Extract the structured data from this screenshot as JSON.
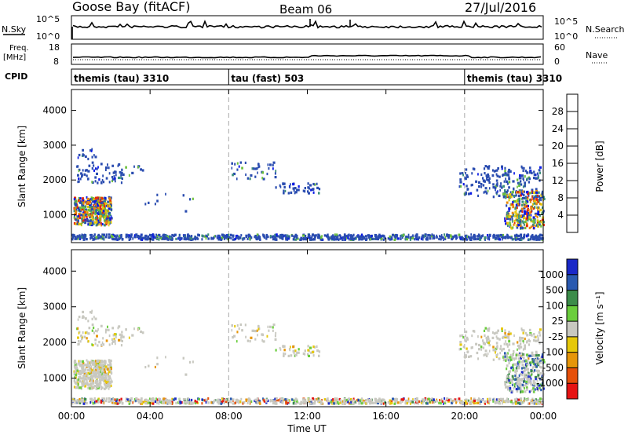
{
  "header": {
    "radar": "Goose Bay (fitACF)",
    "beam": "Beam 06",
    "date": "27/Jul/2016"
  },
  "params": {
    "nsky_label": "N.Sky",
    "nsearch_label": "N.Search",
    "freq_label_line1": "Freq.",
    "freq_label_line2": "[MHz]",
    "nave_label": "Nave",
    "cpid_label": "CPID",
    "noise_ticks": [
      "10^5",
      "10^0"
    ],
    "freq_ticks": [
      "18",
      "8"
    ],
    "nave_ticks": [
      "60",
      "0"
    ]
  },
  "cpid_segments": [
    {
      "label": "themis (tau) 3310",
      "start_hour": 0
    },
    {
      "label": "tau (fast) 503",
      "start_hour": 8
    },
    {
      "label": "themis (tau) 3310",
      "start_hour": 20
    }
  ],
  "chart_data": [
    {
      "type": "heatmap",
      "name": "power",
      "ylabel": "Slant Range [km]",
      "xlabel": "",
      "xlim": [
        0,
        24
      ],
      "ylim": [
        200,
        4600
      ],
      "yticks": [
        1000,
        2000,
        3000,
        4000
      ],
      "colorbar": {
        "label": "Power [dB]",
        "ticks": [
          4,
          8,
          12,
          16,
          20,
          24,
          28
        ],
        "range": [
          0,
          32
        ],
        "colors": [
          "#0a1ae6",
          "#2a4cb0",
          "#3c8f7a",
          "#6abf3a",
          "#e6c80a",
          "#e68a0a",
          "#e6280a"
        ]
      }
    },
    {
      "type": "heatmap",
      "name": "velocity",
      "ylabel": "Slant Range [km]",
      "xlabel": "Time UT",
      "xlim": [
        0,
        24
      ],
      "ylim": [
        200,
        4600
      ],
      "yticks": [
        1000,
        2000,
        3000,
        4000
      ],
      "xticks": [
        "00:00",
        "04:00",
        "08:00",
        "12:00",
        "16:00",
        "20:00",
        "00:00"
      ],
      "colorbar": {
        "label": "Velocity [m s⁻¹]",
        "ticks": [
          "1000",
          "500",
          "100",
          "25",
          "-25",
          "-100",
          "-500",
          "-1000"
        ],
        "colors": [
          "#1a28c8",
          "#2a5ab0",
          "#3c8c4a",
          "#6acd3c",
          "#c8c8c0",
          "#e6c80a",
          "#e6960a",
          "#e6500a",
          "#e61414"
        ]
      }
    }
  ]
}
